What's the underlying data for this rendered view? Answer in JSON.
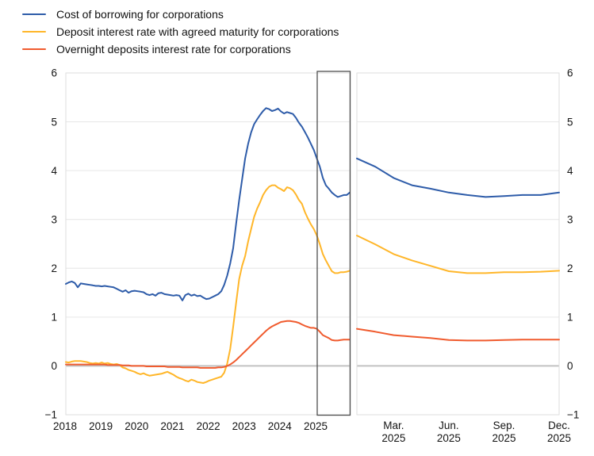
{
  "chart_data": {
    "type": "line",
    "title": "",
    "unit": "percent",
    "legend_position": "top-left",
    "grid": true,
    "y_axis": {
      "min": -1,
      "max": 6,
      "ticks": [
        6,
        5,
        4,
        3,
        2,
        1,
        0,
        -1
      ],
      "tick_labels": [
        "6",
        "5",
        "4",
        "3",
        "2",
        "1",
        "0",
        "−1"
      ],
      "zero_line": true,
      "shown_on_left_and_right": true
    },
    "series_meta": [
      {
        "id": "cost_of_borrowing",
        "name": "Cost of borrowing for corporations",
        "color": "#2E5CA9"
      },
      {
        "id": "deposit_agreed_maturity",
        "name": "Deposit interest rate with agreed maturity for corporations",
        "color": "#FFB629"
      },
      {
        "id": "overnight_deposits",
        "name": "Overnight deposits interest rate for corporations",
        "color": "#F05B2E"
      }
    ],
    "left_panel": {
      "description": "Monthly data January 2018 to December 2025",
      "x_tick_labels": [
        "2018",
        "2019",
        "2020",
        "2021",
        "2022",
        "2023",
        "2024",
        "2025"
      ],
      "highlight_box_range": [
        "2025-01",
        "2025-12"
      ],
      "series": {
        "cost_of_borrowing": [
          1.68,
          1.71,
          1.73,
          1.7,
          1.61,
          1.69,
          1.68,
          1.67,
          1.66,
          1.65,
          1.64,
          1.64,
          1.63,
          1.64,
          1.63,
          1.62,
          1.61,
          1.58,
          1.55,
          1.52,
          1.55,
          1.5,
          1.53,
          1.54,
          1.53,
          1.52,
          1.51,
          1.47,
          1.45,
          1.47,
          1.44,
          1.49,
          1.5,
          1.47,
          1.46,
          1.45,
          1.44,
          1.45,
          1.44,
          1.34,
          1.45,
          1.48,
          1.44,
          1.46,
          1.43,
          1.44,
          1.4,
          1.37,
          1.38,
          1.41,
          1.44,
          1.47,
          1.53,
          1.66,
          1.85,
          2.1,
          2.41,
          2.92,
          3.4,
          3.82,
          4.25,
          4.55,
          4.78,
          4.95,
          5.05,
          5.14,
          5.22,
          5.28,
          5.26,
          5.22,
          5.24,
          5.27,
          5.21,
          5.17,
          5.2,
          5.18,
          5.16,
          5.08,
          4.98,
          4.9,
          4.79,
          4.68,
          4.55,
          4.42,
          4.25,
          4.08,
          3.85,
          3.7,
          3.63,
          3.55,
          3.5,
          3.46,
          3.48,
          3.5,
          3.5,
          3.55
        ],
        "deposit_agreed_maturity": [
          0.08,
          0.07,
          0.09,
          0.1,
          0.1,
          0.1,
          0.09,
          0.08,
          0.06,
          0.05,
          0.06,
          0.05,
          0.07,
          0.05,
          0.06,
          0.04,
          0.03,
          0.04,
          0.02,
          -0.03,
          -0.05,
          -0.08,
          -0.1,
          -0.12,
          -0.15,
          -0.17,
          -0.15,
          -0.18,
          -0.2,
          -0.19,
          -0.18,
          -0.17,
          -0.16,
          -0.14,
          -0.12,
          -0.15,
          -0.18,
          -0.22,
          -0.25,
          -0.27,
          -0.3,
          -0.32,
          -0.28,
          -0.3,
          -0.33,
          -0.34,
          -0.35,
          -0.33,
          -0.3,
          -0.28,
          -0.26,
          -0.24,
          -0.22,
          -0.14,
          0.05,
          0.35,
          0.8,
          1.3,
          1.78,
          2.05,
          2.25,
          2.55,
          2.8,
          3.05,
          3.22,
          3.35,
          3.5,
          3.6,
          3.67,
          3.7,
          3.7,
          3.65,
          3.62,
          3.58,
          3.66,
          3.64,
          3.6,
          3.51,
          3.4,
          3.32,
          3.15,
          3.02,
          2.9,
          2.8,
          2.67,
          2.49,
          2.29,
          2.16,
          2.05,
          1.94,
          1.9,
          1.9,
          1.92,
          1.92,
          1.93,
          1.95
        ],
        "overnight_deposits": [
          0.03,
          0.03,
          0.03,
          0.03,
          0.03,
          0.03,
          0.03,
          0.03,
          0.03,
          0.03,
          0.03,
          0.03,
          0.03,
          0.03,
          0.02,
          0.02,
          0.02,
          0.02,
          0.02,
          0.01,
          0.01,
          0.01,
          0.0,
          0.0,
          0.0,
          0.0,
          0.0,
          -0.01,
          -0.01,
          -0.01,
          -0.01,
          -0.01,
          -0.01,
          -0.01,
          -0.02,
          -0.02,
          -0.02,
          -0.02,
          -0.02,
          -0.03,
          -0.03,
          -0.03,
          -0.03,
          -0.03,
          -0.03,
          -0.04,
          -0.04,
          -0.04,
          -0.04,
          -0.04,
          -0.04,
          -0.03,
          -0.03,
          -0.02,
          0.0,
          0.03,
          0.07,
          0.12,
          0.18,
          0.24,
          0.3,
          0.36,
          0.42,
          0.48,
          0.54,
          0.6,
          0.66,
          0.72,
          0.77,
          0.81,
          0.84,
          0.87,
          0.9,
          0.91,
          0.92,
          0.92,
          0.91,
          0.9,
          0.88,
          0.85,
          0.82,
          0.8,
          0.78,
          0.78,
          0.76,
          0.7,
          0.63,
          0.6,
          0.57,
          0.53,
          0.52,
          0.52,
          0.53,
          0.54,
          0.54,
          0.54
        ]
      }
    },
    "right_panel": {
      "description": "Zoom of highlighted period, monthly January 2025 to December 2025",
      "x_tick_labels": [
        [
          "Mar.",
          "2025"
        ],
        [
          "Jun.",
          "2025"
        ],
        [
          "Sep.",
          "2025"
        ],
        [
          "Dec.",
          "2025"
        ]
      ],
      "x_tick_month_index": [
        2,
        5,
        8,
        11
      ],
      "series": {
        "cost_of_borrowing": [
          4.25,
          4.08,
          3.85,
          3.7,
          3.63,
          3.55,
          3.5,
          3.46,
          3.48,
          3.5,
          3.5,
          3.55
        ],
        "deposit_agreed_maturity": [
          2.67,
          2.49,
          2.29,
          2.16,
          2.05,
          1.94,
          1.9,
          1.9,
          1.92,
          1.92,
          1.93,
          1.95
        ],
        "overnight_deposits": [
          0.76,
          0.7,
          0.63,
          0.6,
          0.57,
          0.53,
          0.52,
          0.52,
          0.53,
          0.54,
          0.54,
          0.54
        ]
      }
    },
    "style_colors": {
      "gridline": "#e6e6e6",
      "zero_line": "#c2c2c2",
      "panel_border": "#dedede",
      "highlight_box": "#4d4d4d",
      "text": "#141414"
    }
  }
}
